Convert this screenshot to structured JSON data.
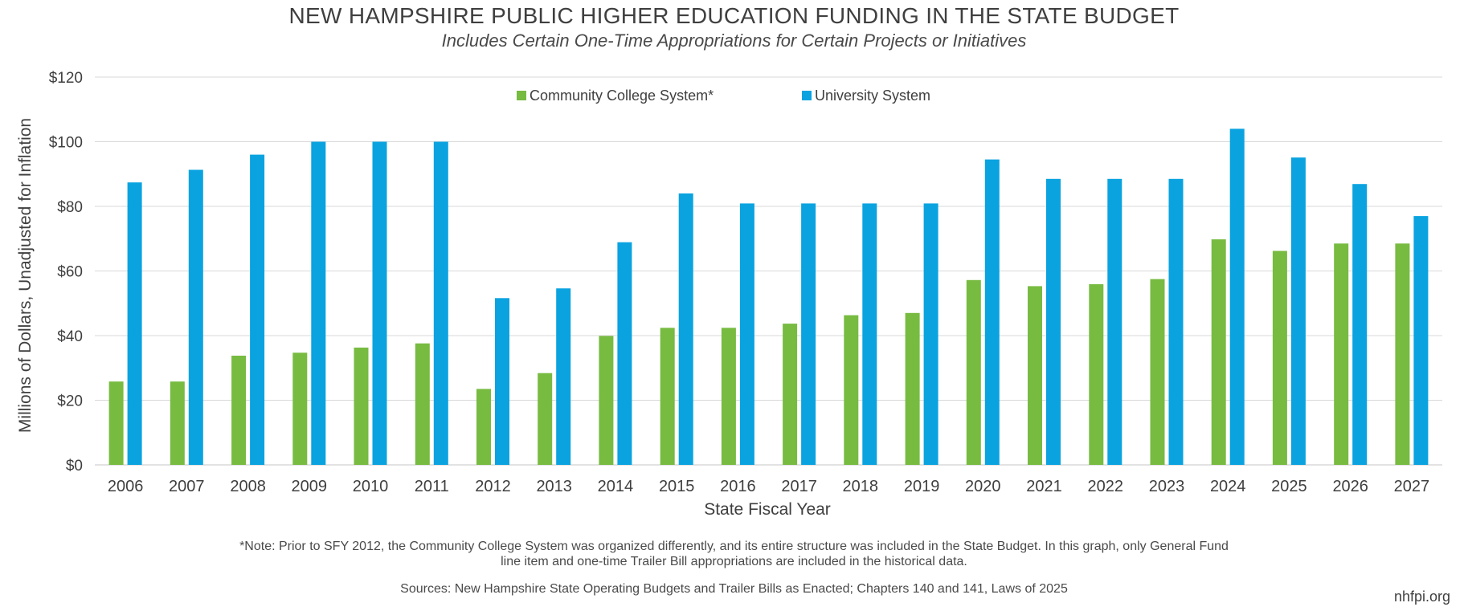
{
  "chart_data": {
    "type": "bar",
    "title": "NEW HAMPSHIRE PUBLIC HIGHER EDUCATION FUNDING IN THE STATE BUDGET",
    "subtitle": "Includes Certain One-Time Appropriations for Certain Projects or Initiatives",
    "xlabel": "State Fiscal Year",
    "ylabel": "Millions of Dollars, Unadjusted for Inflation",
    "ylim": [
      0,
      120
    ],
    "yticks": [
      "$0",
      "$20",
      "$40",
      "$60",
      "$80",
      "$100",
      "$120"
    ],
    "categories": [
      "2006",
      "2007",
      "2008",
      "2009",
      "2010",
      "2011",
      "2012",
      "2013",
      "2014",
      "2015",
      "2016",
      "2017",
      "2018",
      "2019",
      "2020",
      "2021",
      "2022",
      "2023",
      "2024",
      "2025",
      "2026",
      "2027"
    ],
    "series": [
      {
        "name": "Community College System*",
        "color": "#77bb41",
        "values": [
          25.8,
          25.8,
          33.8,
          34.7,
          36.3,
          37.6,
          23.5,
          28.4,
          39.9,
          42.4,
          42.4,
          43.7,
          46.3,
          47.0,
          57.2,
          55.3,
          55.9,
          57.5,
          69.8,
          66.2,
          68.5,
          68.5
        ]
      },
      {
        "name": "University System",
        "color": "#0aa3e0",
        "values": [
          87.4,
          91.3,
          96.0,
          100.0,
          100.0,
          100.0,
          51.6,
          54.6,
          68.9,
          84.0,
          80.9,
          80.9,
          80.9,
          80.9,
          94.5,
          88.5,
          88.5,
          88.5,
          104.0,
          95.1,
          86.9,
          77.0
        ]
      }
    ],
    "grid": true,
    "legend": "top-center"
  },
  "notes": {
    "line1": "*Note: Prior to SFY 2012, the Community College System was organized differently, and its entire structure was included in the State Budget. In this graph, only General Fund",
    "line2": "line item and one-time Trailer Bill appropriations are included in the historical data.",
    "sources": "Sources: New Hampshire State Operating Budgets and Trailer Bills as Enacted; Chapters 140 and 141, Laws of 2025"
  },
  "brand": "nhfpi.org",
  "colors": {
    "grid": "#d9d9d9",
    "axis_text": "#3f3f3f"
  }
}
